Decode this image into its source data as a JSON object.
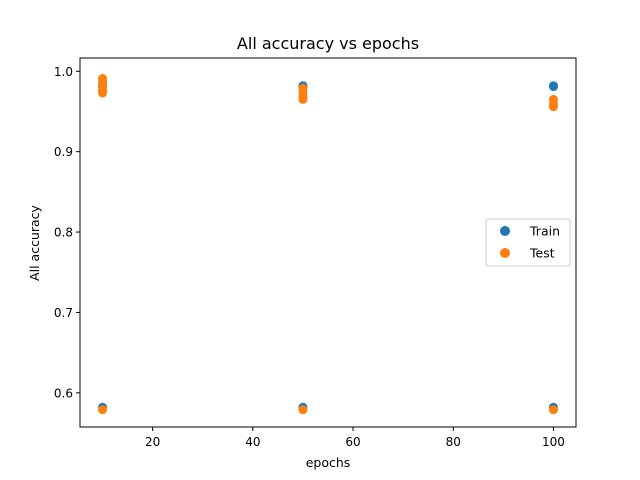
{
  "chart_data": {
    "type": "scatter",
    "title": "All accuracy vs epochs",
    "xlabel": "epochs",
    "ylabel": "All accuracy",
    "xlim": [
      5.5,
      104.5
    ],
    "ylim": [
      0.5575,
      1.0165
    ],
    "xticks": [
      20,
      40,
      60,
      80,
      100
    ],
    "yticks": [
      0.6,
      0.7,
      0.8,
      0.9,
      1.0
    ],
    "xtick_labels": [
      "20",
      "40",
      "60",
      "80",
      "100"
    ],
    "ytick_labels": [
      "0.6",
      "0.7",
      "0.8",
      "0.9",
      "1.0"
    ],
    "grid": false,
    "legend_position": "center-right",
    "series": [
      {
        "name": "Train",
        "color": "#1f77b4",
        "points": [
          {
            "x": 10,
            "y": 0.582
          },
          {
            "x": 10,
            "y": 0.981
          },
          {
            "x": 10,
            "y": 0.983
          },
          {
            "x": 50,
            "y": 0.582
          },
          {
            "x": 50,
            "y": 0.981
          },
          {
            "x": 50,
            "y": 0.982
          },
          {
            "x": 100,
            "y": 0.582
          },
          {
            "x": 100,
            "y": 0.981
          },
          {
            "x": 100,
            "y": 0.982
          }
        ]
      },
      {
        "name": "Test",
        "color": "#ff7f0e",
        "points": [
          {
            "x": 10,
            "y": 0.579
          },
          {
            "x": 10,
            "y": 0.973
          },
          {
            "x": 10,
            "y": 0.976
          },
          {
            "x": 10,
            "y": 0.981
          },
          {
            "x": 10,
            "y": 0.987
          },
          {
            "x": 10,
            "y": 0.991
          },
          {
            "x": 50,
            "y": 0.579
          },
          {
            "x": 50,
            "y": 0.965
          },
          {
            "x": 50,
            "y": 0.969
          },
          {
            "x": 50,
            "y": 0.974
          },
          {
            "x": 50,
            "y": 0.979
          },
          {
            "x": 100,
            "y": 0.579
          },
          {
            "x": 100,
            "y": 0.956
          },
          {
            "x": 100,
            "y": 0.959
          },
          {
            "x": 100,
            "y": 0.965
          }
        ]
      }
    ]
  }
}
